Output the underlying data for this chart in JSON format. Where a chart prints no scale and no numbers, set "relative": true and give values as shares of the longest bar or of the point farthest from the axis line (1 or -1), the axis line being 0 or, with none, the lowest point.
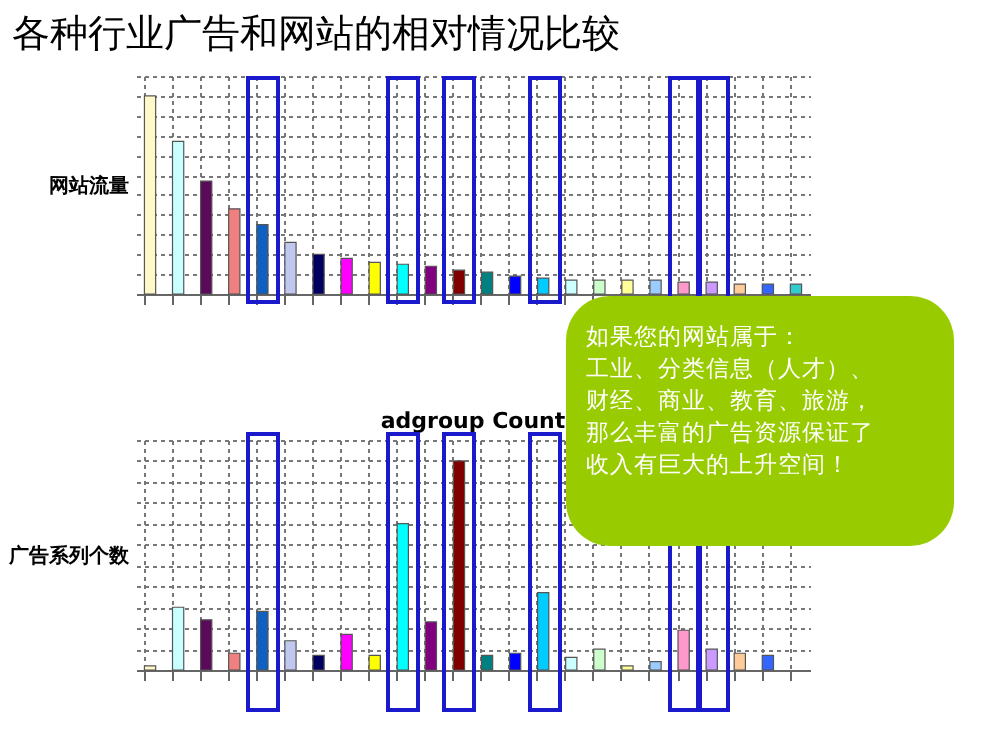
{
  "chart_data": [
    {
      "type": "bar",
      "title": "各种行业广告和网站的相对情况比较",
      "ylabel": "网站流量",
      "relative": true,
      "grid": true,
      "categories": [
        null,
        null,
        null,
        null,
        null,
        null,
        null,
        null,
        null,
        null,
        null,
        null,
        null,
        null,
        null,
        null,
        null,
        null,
        null,
        null,
        null,
        null,
        null,
        null
      ],
      "values": [
        1,
        0.77,
        0.57,
        0.43,
        0.35,
        0.26,
        0.2,
        0.18,
        0.16,
        0.15,
        0.14,
        0.12,
        0.11,
        0.09,
        0.08,
        0.07,
        0.07,
        0.07,
        0.07,
        0.06,
        0.06,
        0.05,
        0.05,
        0.05
      ],
      "colors": [
        "#fff8c8",
        "#c8ffff",
        "#5a0a5a",
        "#f08080",
        "#1060c0",
        "#c0c8f0",
        "#000060",
        "#ff00ff",
        "#ffff00",
        "#00ffff",
        "#800080",
        "#800000",
        "#008080",
        "#0000ff",
        "#00ccff",
        "#ccffff",
        "#ccffcc",
        "#ffff99",
        "#99ccff",
        "#ff99cc",
        "#cc99ff",
        "#ffcc99",
        "#3366ff",
        "#33cccc"
      ]
    },
    {
      "type": "bar",
      "subtitle": "adgroup Count",
      "ylabel": "广告系列个数",
      "relative": true,
      "grid": true,
      "categories": [
        null,
        null,
        null,
        null,
        null,
        null,
        null,
        null,
        null,
        null,
        null,
        null,
        null,
        null,
        null,
        null,
        null,
        null,
        null,
        null,
        null,
        null,
        null,
        null
      ],
      "values": [
        0.02,
        0.3,
        0.24,
        0.08,
        0.28,
        0.14,
        0.07,
        0.17,
        0.07,
        0.7,
        0.23,
        1,
        0.07,
        0.08,
        0.37,
        0.06,
        0.1,
        0.02,
        0.04,
        0.19,
        0.1,
        0.08,
        0.07,
        null
      ],
      "colors": [
        "#fff8c8",
        "#c8ffff",
        "#5a0a5a",
        "#f08080",
        "#1060c0",
        "#c0c8f0",
        "#000060",
        "#ff00ff",
        "#ffff00",
        "#00ffff",
        "#800080",
        "#800000",
        "#008080",
        "#0000ff",
        "#00ccff",
        "#ccffff",
        "#ccffcc",
        "#ffff99",
        "#99ccff",
        "#ff99cc",
        "#cc99ff",
        "#ffcc99",
        "#3366ff",
        "#33cccc"
      ]
    },
    {
      "type": "other",
      "annotations": [
        "如果您的网站属于：",
        "工业、分类信息（人才）、",
        "财经、商业、教育、旅游，",
        "那么丰富的广告资源保证了",
        "收入有巨大的上升空间！"
      ]
    }
  ]
}
